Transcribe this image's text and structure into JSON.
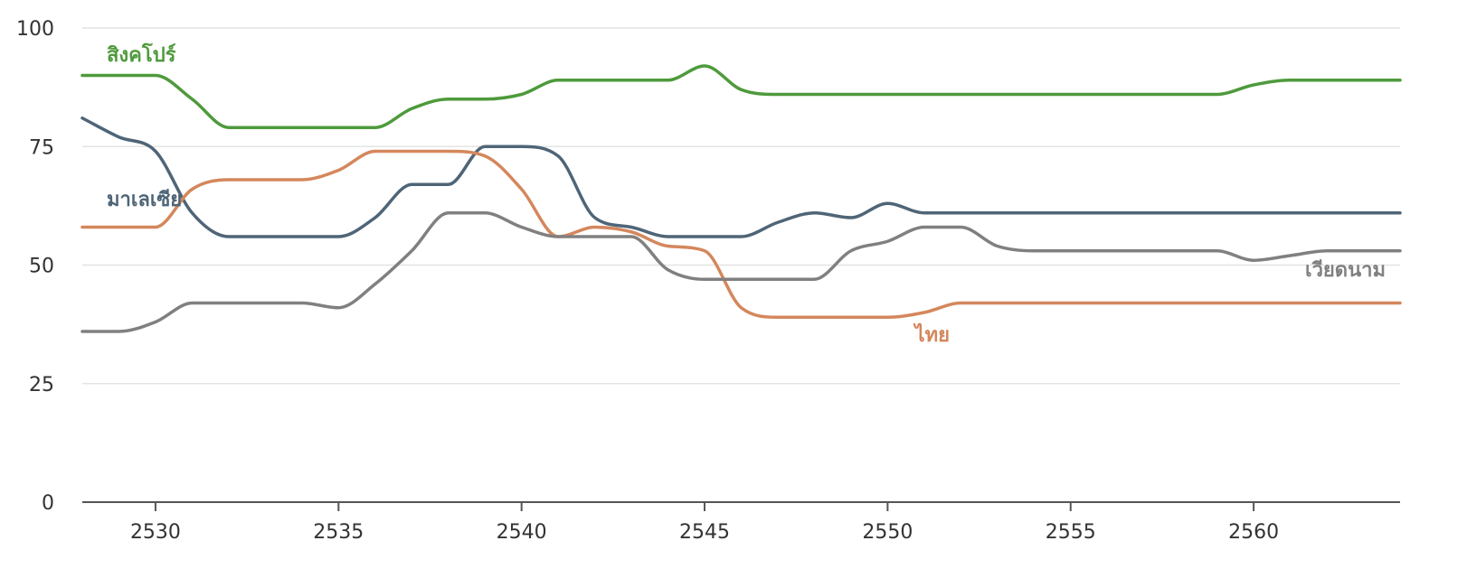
{
  "chart_data": {
    "type": "line",
    "title": "",
    "xlabel": "",
    "ylabel": "",
    "xlim": [
      2528,
      2564
    ],
    "ylim": [
      0,
      100
    ],
    "x_ticks": [
      2530,
      2535,
      2540,
      2545,
      2550,
      2555,
      2560
    ],
    "y_ticks": [
      0,
      25,
      50,
      75,
      100
    ],
    "grid": true,
    "legend": "inline labels",
    "x": [
      2528,
      2529,
      2530,
      2531,
      2532,
      2533,
      2534,
      2535,
      2536,
      2537,
      2538,
      2539,
      2540,
      2541,
      2542,
      2543,
      2544,
      2545,
      2546,
      2547,
      2548,
      2549,
      2550,
      2551,
      2552,
      2553,
      2554,
      2555,
      2556,
      2557,
      2558,
      2559,
      2560,
      2561,
      2562,
      2563,
      2564
    ],
    "series": [
      {
        "name": "สิงคโปร์",
        "color": "#4e9a3c",
        "values": [
          90,
          90,
          90,
          85,
          79,
          79,
          79,
          79,
          79,
          83,
          85,
          85,
          86,
          89,
          89,
          89,
          89,
          92,
          87,
          86,
          86,
          86,
          86,
          86,
          86,
          86,
          86,
          86,
          86,
          86,
          86,
          86,
          88,
          89,
          89,
          89,
          89
        ]
      },
      {
        "name": "มาเลเซีย",
        "color": "#4f6577",
        "values": [
          81,
          77,
          74,
          61,
          56,
          56,
          56,
          56,
          60,
          67,
          67,
          75,
          75,
          73,
          60,
          58,
          56,
          56,
          56,
          59,
          61,
          60,
          63,
          61,
          61,
          61,
          61,
          61,
          61,
          61,
          61,
          61,
          61,
          61,
          61,
          61,
          61
        ]
      },
      {
        "name": "ไทย",
        "color": "#d4875c",
        "values": [
          58,
          58,
          58,
          66,
          68,
          68,
          68,
          70,
          74,
          74,
          74,
          73,
          66,
          56,
          58,
          57,
          54,
          53,
          41,
          39,
          39,
          39,
          39,
          40,
          42,
          42,
          42,
          42,
          42,
          42,
          42,
          42,
          42,
          42,
          42,
          42,
          42
        ]
      },
      {
        "name": "เวียดนาม",
        "color": "#808080",
        "values": [
          36,
          36,
          38,
          42,
          42,
          42,
          42,
          41,
          46,
          53,
          61,
          61,
          58,
          56,
          56,
          56,
          49,
          47,
          47,
          47,
          47,
          53,
          55,
          58,
          58,
          54,
          53,
          53,
          53,
          53,
          53,
          53,
          51,
          52,
          53,
          53,
          53
        ]
      }
    ]
  }
}
